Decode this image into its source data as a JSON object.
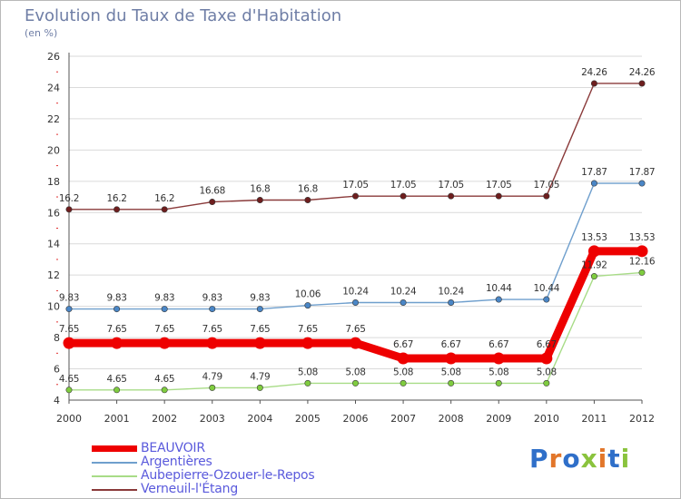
{
  "header": {
    "title": "Evolution du Taux de Taxe d'Habitation",
    "subtitle": "(en %)"
  },
  "logo": {
    "text": "Proxiti",
    "colors": [
      "#2f6fc9",
      "#e2762a",
      "#2f6fc9",
      "#8ac33d",
      "#e2762a",
      "#2f6fc9",
      "#8ac33d"
    ]
  },
  "chart_data": {
    "type": "line",
    "title": "Evolution du Taux de Taxe d'Habitation",
    "subtitle": "(en %)",
    "xlabel": "",
    "ylabel": "",
    "categories": [
      "2000",
      "2001",
      "2002",
      "2003",
      "2004",
      "2005",
      "2006",
      "2007",
      "2008",
      "2009",
      "2010",
      "2011",
      "2012"
    ],
    "ylim": [
      4,
      26
    ],
    "yticks": [
      4,
      6,
      8,
      10,
      12,
      14,
      16,
      18,
      20,
      22,
      24,
      26
    ],
    "grid": "y",
    "legend_position": "bottom",
    "series": [
      {
        "name": "BEAUVOIR",
        "color": "#ee0000",
        "marker_color": "#ee0000",
        "emphasis": true,
        "values": [
          7.65,
          7.65,
          7.65,
          7.65,
          7.65,
          7.65,
          7.65,
          6.67,
          6.67,
          6.67,
          6.67,
          13.53,
          13.53
        ],
        "labels": [
          "7.65",
          "7.65",
          "7.65",
          "7.65",
          "7.65",
          "7.65",
          "7.65",
          "6.67",
          "6.67",
          "6.67",
          "6.67",
          "13.53",
          "13.53"
        ]
      },
      {
        "name": "Argentières",
        "color": "#6f9fcd",
        "marker_color": "#4a86c6",
        "values": [
          9.83,
          9.83,
          9.83,
          9.83,
          9.83,
          10.06,
          10.24,
          10.24,
          10.24,
          10.44,
          10.44,
          17.87,
          17.87
        ],
        "labels": [
          "9.83",
          "9.83",
          "9.83",
          "9.83",
          "9.83",
          "10.06",
          "10.24",
          "10.24",
          "10.24",
          "10.44",
          "10.44",
          "17.87",
          "17.87"
        ]
      },
      {
        "name": "Aubepierre-Ozouer-le-Repos",
        "color": "#a8dc87",
        "marker_color": "#7fcc3f",
        "values": [
          4.65,
          4.65,
          4.65,
          4.79,
          4.79,
          5.08,
          5.08,
          5.08,
          5.08,
          5.08,
          5.08,
          11.92,
          12.16
        ],
        "labels": [
          "4.65",
          "4.65",
          "4.65",
          "4.79",
          "4.79",
          "5.08",
          "5.08",
          "5.08",
          "5.08",
          "5.08",
          "5.08",
          "11.92",
          "12.16"
        ]
      },
      {
        "name": "Verneuil-l'Étang",
        "color": "#8a3a3a",
        "marker_color": "#6e1e1e",
        "values": [
          16.2,
          16.2,
          16.2,
          16.68,
          16.8,
          16.8,
          17.05,
          17.05,
          17.05,
          17.05,
          17.05,
          24.26,
          24.26
        ],
        "labels": [
          "16.2",
          "16.2",
          "16.2",
          "16.68",
          "16.8",
          "16.8",
          "17.05",
          "17.05",
          "17.05",
          "17.05",
          "17.05",
          "24.26",
          "24.26"
        ]
      }
    ]
  }
}
